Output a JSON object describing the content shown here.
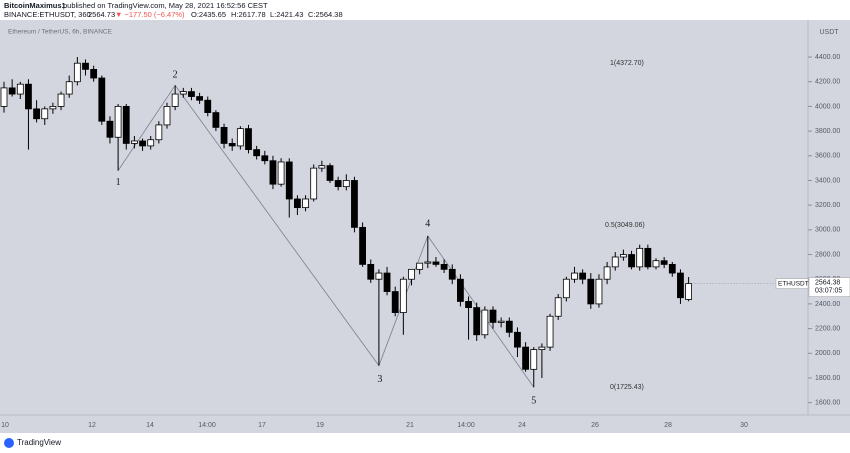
{
  "header": {
    "author": "BitcoinMaximus1",
    "published": "published on TradingView.com, May 28, 2021 16:52:56 CEST",
    "symbol": "BINANCE:ETHUSDT, 360",
    "price": "2564.73",
    "change": "▼ −177.50 (−6.47%)",
    "ohlc": [
      "O:2435.65",
      "H:2617.78",
      "L:2421.43",
      "C:2564.38"
    ]
  },
  "footer": "TradingView",
  "chart_data": {
    "type": "candlestick",
    "title": "Ethereum / TetherUS, 6h, BINANCE",
    "currency": "USDT",
    "up_color": "#ffffff",
    "down_color": "#000000",
    "open": [
      4000,
      4150,
      4100,
      4180,
      3980,
      3900,
      3980,
      4000,
      4100,
      4200,
      4350,
      4300,
      4230,
      3880,
      3750,
      4000,
      3700,
      3720,
      3680,
      3730,
      3850,
      4000,
      4100,
      4120,
      4080,
      4050,
      3950,
      3830,
      3700,
      3680,
      3820,
      3650,
      3600,
      3560,
      3370,
      3550,
      3250,
      3180,
      3250,
      3500,
      3520,
      3400,
      3350,
      3400,
      3020,
      2720,
      2600,
      2650,
      2500,
      2330,
      2600,
      2680,
      2730,
      2740,
      2720,
      2680,
      2600,
      2420,
      2370,
      2150,
      2350,
      2250,
      2260,
      2170,
      2050,
      1870,
      2030,
      2050,
      2300,
      2450,
      2600,
      2650,
      2600,
      2400,
      2600,
      2700,
      2780,
      2800,
      2700,
      2850,
      2700,
      2750,
      2720,
      2650,
      2435.65
    ],
    "high": [
      4200,
      4220,
      4200,
      4220,
      4050,
      4000,
      4030,
      4120,
      4250,
      4400,
      4380,
      4330,
      4250,
      3920,
      4020,
      4020,
      3760,
      3740,
      3760,
      3880,
      4030,
      4170,
      4150,
      4150,
      4110,
      4080,
      3970,
      3860,
      3740,
      3840,
      3850,
      3680,
      3640,
      3600,
      3580,
      3580,
      3280,
      3280,
      3530,
      3560,
      3540,
      3430,
      3450,
      3430,
      3060,
      2760,
      2680,
      2700,
      2540,
      2620,
      2680,
      2720,
      2950,
      2780,
      2760,
      2720,
      2640,
      2460,
      2410,
      2380,
      2380,
      2290,
      2290,
      2210,
      2090,
      2050,
      2080,
      2320,
      2480,
      2620,
      2700,
      2680,
      2650,
      2640,
      2740,
      2820,
      2840,
      2830,
      2880,
      2880,
      2770,
      2780,
      2740,
      2680,
      2617.78
    ],
    "low": [
      3950,
      4080,
      4060,
      3650,
      3870,
      3850,
      3940,
      3970,
      4070,
      4170,
      4250,
      4200,
      3850,
      3700,
      3480,
      3650,
      3660,
      3640,
      3650,
      3700,
      3820,
      3970,
      4070,
      4050,
      4020,
      3920,
      3800,
      3660,
      3640,
      3650,
      3620,
      3570,
      3530,
      3330,
      3350,
      3100,
      3120,
      3150,
      3230,
      3470,
      3380,
      3320,
      3320,
      2980,
      2700,
      2570,
      1900,
      2470,
      2300,
      2150,
      2550,
      2640,
      2690,
      2700,
      2650,
      2560,
      2380,
      2110,
      2100,
      2120,
      2200,
      2210,
      2130,
      1970,
      1850,
      1725,
      1800,
      2020,
      2270,
      2420,
      2570,
      2560,
      2360,
      2370,
      2560,
      2670,
      2750,
      2680,
      2670,
      2680,
      2680,
      2690,
      2620,
      2400,
      2421.43
    ],
    "close": [
      4150,
      4100,
      4180,
      3980,
      3900,
      3980,
      4000,
      4100,
      4200,
      4350,
      4300,
      4230,
      3880,
      3750,
      4000,
      3700,
      3720,
      3680,
      3730,
      3850,
      4000,
      4100,
      4120,
      4080,
      4050,
      3950,
      3830,
      3700,
      3680,
      3820,
      3650,
      3600,
      3560,
      3370,
      3550,
      3250,
      3180,
      3250,
      3500,
      3520,
      3400,
      3350,
      3400,
      3020,
      2720,
      2600,
      2650,
      2500,
      2330,
      2600,
      2680,
      2730,
      2740,
      2720,
      2680,
      2600,
      2420,
      2370,
      2150,
      2350,
      2250,
      2260,
      2170,
      2050,
      1870,
      2030,
      2050,
      2300,
      2450,
      2600,
      2650,
      2600,
      2400,
      2600,
      2700,
      2780,
      2800,
      2700,
      2850,
      2700,
      2750,
      2720,
      2650,
      2450,
      2564.38
    ],
    "ylim": [
      1500,
      4700
    ],
    "yticks": [
      {
        "value": 1600,
        "label": "1600.00"
      },
      {
        "value": 1800,
        "label": "1800.00"
      },
      {
        "value": 2000,
        "label": "2000.00"
      },
      {
        "value": 2200,
        "label": "2200.00"
      },
      {
        "value": 2400,
        "label": "2400.00"
      },
      {
        "value": 2600,
        "label": "2600.00"
      },
      {
        "value": 2800,
        "label": "2800.00"
      },
      {
        "value": 3000,
        "label": "3000.00"
      },
      {
        "value": 3200,
        "label": "3200.00"
      },
      {
        "value": 3400,
        "label": "3400.00"
      },
      {
        "value": 3600,
        "label": "3600.00"
      },
      {
        "value": 3800,
        "label": "3800.00"
      },
      {
        "value": 4000,
        "label": "4000.00"
      },
      {
        "value": 4200,
        "label": "4200.00"
      },
      {
        "value": 4400,
        "label": "4400.00"
      }
    ],
    "x_labels": [
      "10",
      "12",
      "14",
      "14:00",
      "17",
      "19",
      "21",
      "14:00",
      "24",
      "26",
      "28",
      "30"
    ],
    "wave_labels": [
      "1",
      "2",
      "3",
      "4",
      "5"
    ],
    "fib_labels": [
      "1(4372.70)",
      "0.5(3049.06)",
      "0(1725.43)"
    ],
    "price_tag": {
      "symbol": "ETHUSDT",
      "price": "2564.38",
      "countdown": "03:07:05"
    }
  }
}
